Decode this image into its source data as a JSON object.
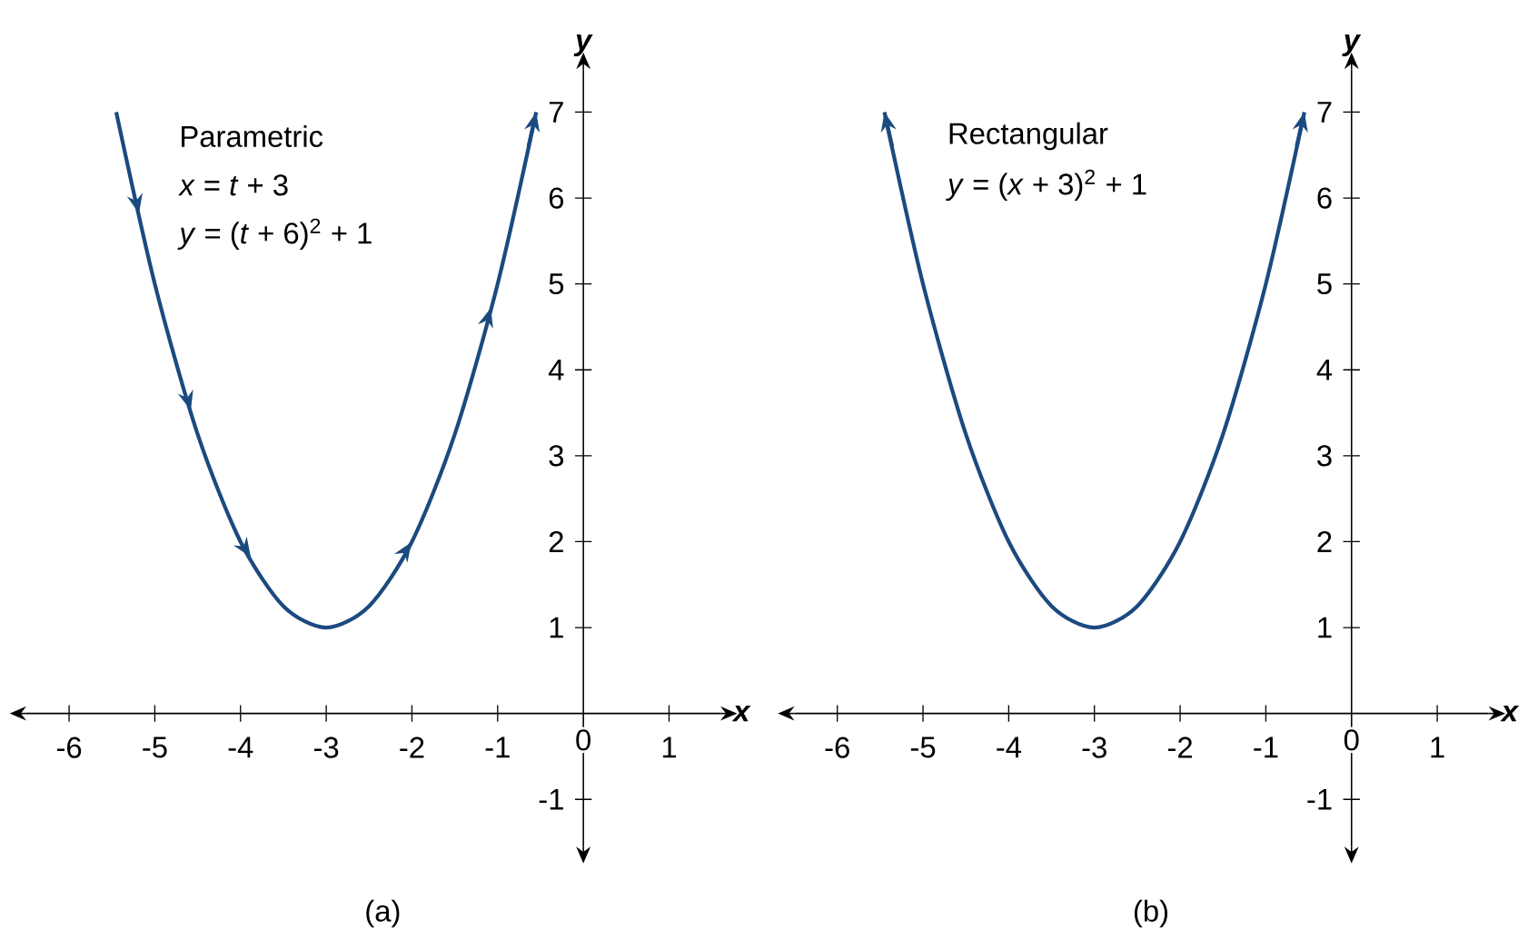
{
  "chart_data": [
    {
      "type": "line",
      "xlabel": "x",
      "ylabel": "y",
      "xlim": [
        -6.5,
        1.6
      ],
      "ylim": [
        -1.55,
        7.5
      ],
      "xticks": [
        -6,
        -5,
        -4,
        -3,
        -2,
        -1,
        {
          "value": 0,
          "label": "0"
        },
        1
      ],
      "yticks": [
        -1,
        1,
        2,
        3,
        4,
        5,
        6,
        7
      ],
      "x": [
        -5.45,
        -5,
        -4.5,
        -4,
        -3.5,
        -3,
        -2.5,
        -2,
        -1.5,
        -1,
        -0.55
      ],
      "series": [
        {
          "color": "#1b4a7f",
          "values": [
            7.0,
            5,
            3.25,
            2,
            1.25,
            1,
            1.25,
            2,
            3.25,
            5,
            7.0
          ]
        }
      ],
      "annotations": [
        "Parametric",
        "*x* = *t* + 3",
        "*y* = (*t* + 6)$^{2}$ + 1",
        "(a)"
      ]
    },
    {
      "type": "line",
      "xlabel": "x",
      "ylabel": "y",
      "xlim": [
        -6.5,
        1.6
      ],
      "ylim": [
        -1.55,
        7.5
      ],
      "xticks": [
        -6,
        -5,
        -4,
        -3,
        -2,
        -1,
        {
          "value": 0,
          "label": "0"
        },
        1
      ],
      "yticks": [
        -1,
        1,
        2,
        3,
        4,
        5,
        6,
        7
      ],
      "x": [
        -5.45,
        -5,
        -4.5,
        -4,
        -3.5,
        -3,
        -2.5,
        -2,
        -1.5,
        -1,
        -0.55
      ],
      "series": [
        {
          "color": "#1b4a7f",
          "values": [
            7.0,
            5,
            3.25,
            2,
            1.25,
            1,
            1.25,
            2,
            3.25,
            5,
            7.0
          ]
        }
      ],
      "annotations": [
        "Rectangular",
        "*y* = (*x* + 3)$^{2}$ + 1",
        "(b)"
      ]
    }
  ]
}
